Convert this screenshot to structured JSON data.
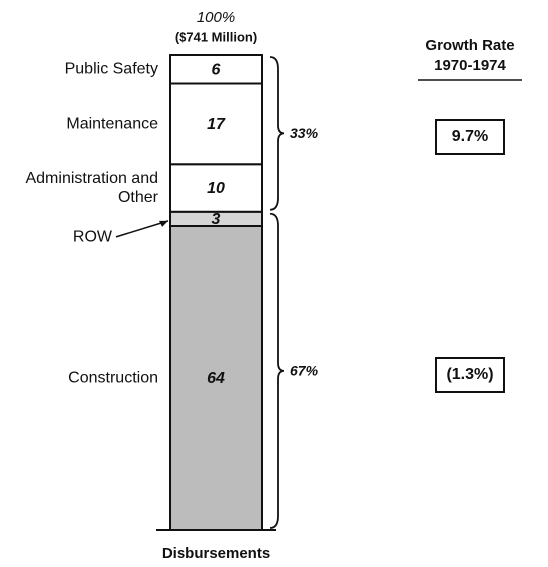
{
  "chart_data": {
    "type": "stacked-column",
    "categories": [
      "Disbursements"
    ],
    "series": [
      {
        "name": "Construction",
        "color": "#bcbcbc",
        "values": [
          64
        ]
      },
      {
        "name": "ROW",
        "color": "#d6d6d6",
        "values": [
          3
        ]
      },
      {
        "name": "Administration and Other",
        "color": "#ffffff",
        "values": [
          10
        ]
      },
      {
        "name": "Maintenance",
        "color": "#ffffff",
        "values": [
          17
        ]
      },
      {
        "name": "Public Safety",
        "color": "#ffffff",
        "values": [
          6
        ]
      }
    ],
    "ylim": [
      0,
      100
    ],
    "total": {
      "value": 100,
      "label": "100%"
    },
    "subtitle": "($741 Million)",
    "brackets": {
      "values": [
        67,
        33
      ],
      "value_labels": [
        "67%",
        "33%"
      ]
    },
    "growth_header": [
      "Growth Rate",
      "1970-1974"
    ],
    "growth_rates": {
      "values": [
        -1.3,
        9.7
      ],
      "value_labels": [
        "(1.3%)",
        "9.7%"
      ]
    }
  }
}
